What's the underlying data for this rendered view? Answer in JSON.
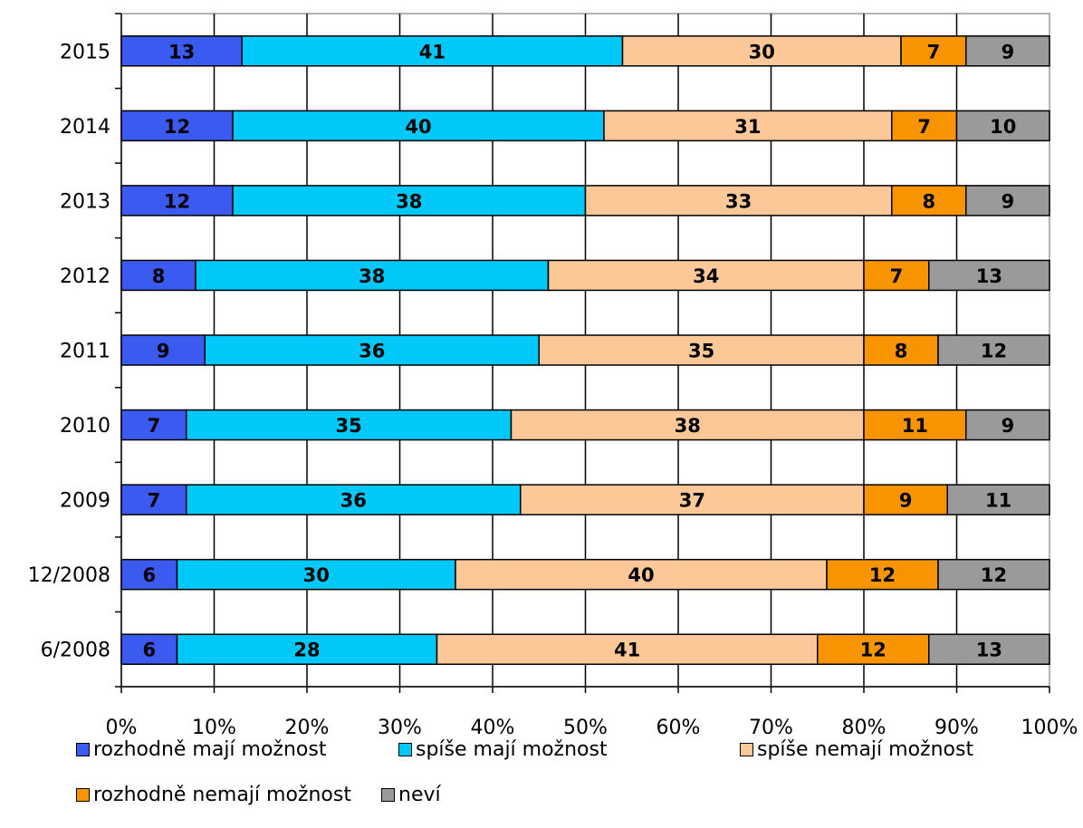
{
  "chart_data": {
    "type": "bar",
    "orientation": "horizontal",
    "stacked": true,
    "percent": true,
    "categories": [
      "2015",
      "2014",
      "2013",
      "2012",
      "2011",
      "2010",
      "2009",
      "12/2008",
      "6/2008"
    ],
    "series": [
      {
        "name": "rozhodně mají možnost",
        "color": "#3a5af0",
        "values": [
          13,
          12,
          12,
          8,
          9,
          7,
          7,
          6,
          6
        ]
      },
      {
        "name": "spíše mají možnost",
        "color": "#00c8f8",
        "values": [
          41,
          40,
          38,
          38,
          36,
          35,
          36,
          30,
          28
        ]
      },
      {
        "name": "spíše nemají možnost",
        "color": "#fcc898",
        "values": [
          30,
          31,
          33,
          34,
          35,
          38,
          37,
          40,
          41
        ]
      },
      {
        "name": "rozhodně nemají možnost",
        "color": "#f89400",
        "values": [
          7,
          7,
          8,
          7,
          8,
          11,
          9,
          12,
          12
        ]
      },
      {
        "name": "neví",
        "color": "#9a9a9a",
        "values": [
          9,
          10,
          9,
          13,
          12,
          9,
          11,
          12,
          13
        ]
      }
    ],
    "x_ticks": [
      "0%",
      "10%",
      "20%",
      "30%",
      "40%",
      "50%",
      "60%",
      "70%",
      "80%",
      "90%",
      "100%"
    ],
    "xlim": [
      0,
      100
    ],
    "grid": true,
    "legend_position": "bottom"
  }
}
